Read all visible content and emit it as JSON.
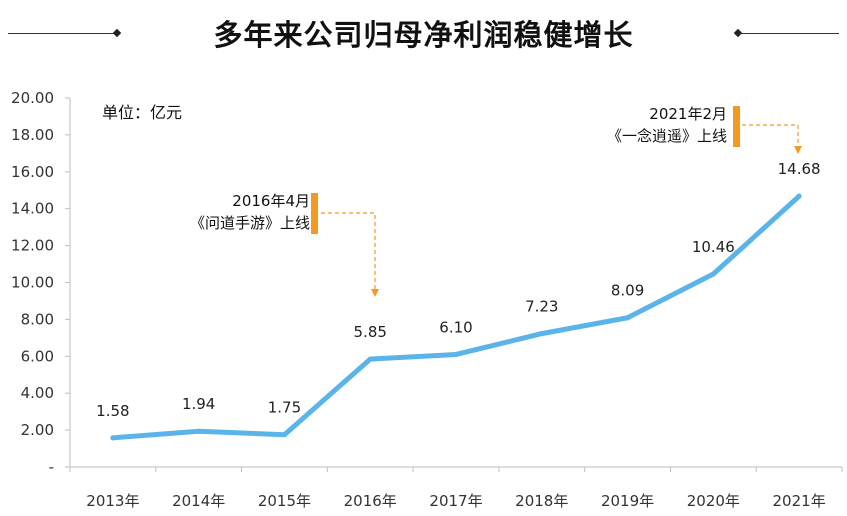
{
  "header": {
    "title": "多年来公司归母净利润稳健增长"
  },
  "unit_label": "单位：亿元",
  "annotations": [
    {
      "line1": "2016年4月",
      "line2": "《问道手游》上线",
      "color": "#f39a21"
    },
    {
      "line1": "2021年2月",
      "line2": "《一念逍遥》上线",
      "color": "#f39a21"
    }
  ],
  "chart_data": {
    "type": "line",
    "title": "多年来公司归母净利润稳健增长",
    "ylabel": "单位：亿元",
    "categories": [
      "2013年",
      "2014年",
      "2015年",
      "2016年",
      "2017年",
      "2018年",
      "2019年",
      "2020年",
      "2021年"
    ],
    "values": [
      1.58,
      1.94,
      1.75,
      5.85,
      6.1,
      7.23,
      8.09,
      10.46,
      14.68
    ],
    "data_labels": [
      "1.58",
      "1.94",
      "1.75",
      "5.85",
      "6.10",
      "7.23",
      "8.09",
      "10.46",
      "14.68"
    ],
    "y_ticks": [
      "-",
      "2.00",
      "4.00",
      "6.00",
      "8.00",
      "10.00",
      "12.00",
      "14.00",
      "16.00",
      "18.00",
      "20.00"
    ],
    "ylim": [
      0,
      20
    ],
    "line_color": "#5ab4ea",
    "grid": false,
    "legend": "none"
  }
}
